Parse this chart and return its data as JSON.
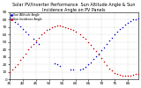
{
  "title": "Solar PV/Inverter Performance  Sun Altitude Angle & Sun Incidence Angle on PV Panels",
  "blue_label": "Sun Altitude Angle",
  "red_label": "Sun Incidence Angle",
  "blue_x": [
    35,
    36,
    37,
    38,
    39,
    40,
    41,
    42,
    44,
    45,
    46,
    52,
    53,
    54,
    58,
    59,
    62,
    63,
    64,
    65,
    66,
    67,
    68,
    69,
    70,
    71,
    72,
    73,
    74,
    75,
    76,
    77,
    78,
    79,
    80,
    81,
    82,
    83,
    84
  ],
  "blue_y": [
    83,
    80,
    77,
    74,
    71,
    68,
    64,
    61,
    54,
    50,
    47,
    22,
    20,
    18,
    13,
    13,
    14,
    15,
    17,
    20,
    23,
    27,
    31,
    35,
    39,
    43,
    48,
    52,
    56,
    60,
    64,
    67,
    70,
    73,
    76,
    78,
    80,
    81,
    82
  ],
  "red_x": [
    35,
    36,
    37,
    38,
    39,
    40,
    41,
    42,
    43,
    44,
    45,
    46,
    47,
    48,
    49,
    50,
    51,
    52,
    53,
    54,
    55,
    56,
    57,
    58,
    59,
    60,
    62,
    63,
    64,
    65,
    66,
    67,
    68,
    69,
    70,
    71,
    72,
    73,
    74,
    75,
    76,
    77,
    78,
    79,
    80,
    81,
    82,
    83,
    84
  ],
  "red_y": [
    10,
    13,
    17,
    21,
    26,
    30,
    35,
    40,
    44,
    48,
    52,
    56,
    60,
    63,
    66,
    68,
    70,
    71,
    72,
    72,
    71,
    70,
    69,
    68,
    66,
    64,
    60,
    57,
    54,
    50,
    46,
    42,
    38,
    33,
    29,
    24,
    19,
    15,
    12,
    9,
    7,
    6,
    5,
    5,
    5,
    5,
    6,
    7,
    8
  ],
  "xlim": [
    35,
    84
  ],
  "ylim": [
    0,
    90
  ],
  "yticks": [
    0,
    10,
    20,
    30,
    40,
    50,
    60,
    70,
    80,
    90
  ],
  "xtick_vals": [
    35,
    40,
    45,
    50,
    55,
    60,
    65,
    70,
    75,
    80
  ],
  "background_color": "#ffffff",
  "blue_color": "#0000cc",
  "red_color": "#cc0000",
  "title_fontsize": 3.5,
  "tick_fontsize": 3,
  "grid_color": "#999999",
  "dot_size": 1.2
}
